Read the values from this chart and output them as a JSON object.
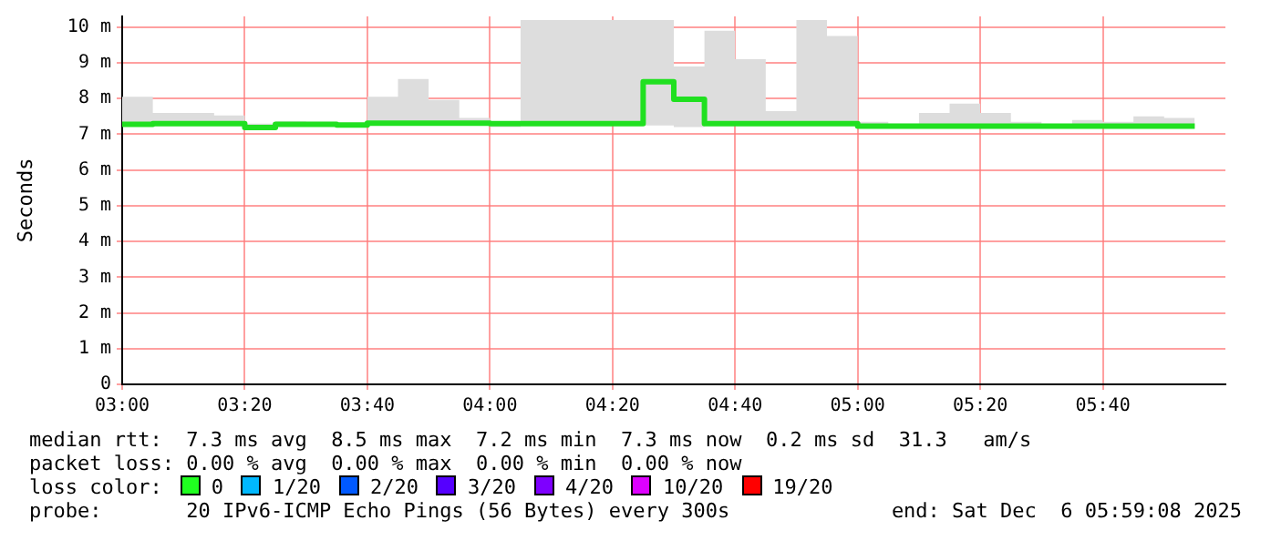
{
  "chart_data": {
    "type": "step",
    "ylabel": "Seconds",
    "x": [
      "2025-12-06T03:00",
      "2025-12-06T03:05",
      "2025-12-06T03:10",
      "2025-12-06T03:15",
      "2025-12-06T03:20",
      "2025-12-06T03:25",
      "2025-12-06T03:30",
      "2025-12-06T03:35",
      "2025-12-06T03:40",
      "2025-12-06T03:45",
      "2025-12-06T03:50",
      "2025-12-06T03:55",
      "2025-12-06T04:00",
      "2025-12-06T04:05",
      "2025-12-06T04:10",
      "2025-12-06T04:15",
      "2025-12-06T04:20",
      "2025-12-06T04:25",
      "2025-12-06T04:30",
      "2025-12-06T04:35",
      "2025-12-06T04:40",
      "2025-12-06T04:45",
      "2025-12-06T04:50",
      "2025-12-06T04:55",
      "2025-12-06T05:00",
      "2025-12-06T05:05",
      "2025-12-06T05:10",
      "2025-12-06T05:15",
      "2025-12-06T05:20",
      "2025-12-06T05:25",
      "2025-12-06T05:30",
      "2025-12-06T05:35",
      "2025-12-06T05:40",
      "2025-12-06T05:45",
      "2025-12-06T05:50",
      "2025-12-06T05:55"
    ],
    "series": [
      {
        "color": "#20e020",
        "values": [
          7.28,
          7.3,
          7.3,
          7.3,
          7.19,
          7.28,
          7.28,
          7.26,
          7.31,
          7.31,
          7.31,
          7.31,
          7.3,
          7.3,
          7.3,
          7.3,
          7.3,
          8.47,
          7.98,
          7.3,
          7.3,
          7.3,
          7.3,
          7.3,
          7.23,
          7.23,
          7.23,
          7.23,
          7.23,
          7.23,
          7.23,
          7.23,
          7.23,
          7.23,
          7.23,
          7.23
        ],
        "lower": [
          7.22,
          7.25,
          7.25,
          7.25,
          7.15,
          7.24,
          7.24,
          7.22,
          7.26,
          7.26,
          7.26,
          7.26,
          7.2,
          7.25,
          7.25,
          7.25,
          7.25,
          7.25,
          7.2,
          7.25,
          7.25,
          7.25,
          7.25,
          7.25,
          7.2,
          7.2,
          7.2,
          7.2,
          7.2,
          7.2,
          7.2,
          7.2,
          7.2,
          7.2,
          7.2,
          7.2
        ],
        "upper": [
          8.05,
          7.6,
          7.6,
          7.53,
          7.3,
          7.36,
          7.35,
          7.3,
          8.05,
          8.55,
          7.96,
          7.46,
          7.35,
          10.2,
          10.2,
          10.2,
          10.2,
          10.2,
          8.9,
          9.9,
          9.1,
          7.65,
          10.2,
          9.75,
          7.35,
          7.3,
          7.6,
          7.86,
          7.6,
          7.35,
          7.28,
          7.4,
          7.35,
          7.5,
          7.46,
          7.46
        ]
      }
    ],
    "xlim": [
      "2025-12-06T03:00",
      "2025-12-06T06:00"
    ],
    "xticks": [
      {
        "value": "2025-12-06T03:00",
        "label": "03:00"
      },
      {
        "value": "2025-12-06T03:20",
        "label": "03:20"
      },
      {
        "value": "2025-12-06T03:40",
        "label": "03:40"
      },
      {
        "value": "2025-12-06T04:00",
        "label": "04:00"
      },
      {
        "value": "2025-12-06T04:20",
        "label": "04:20"
      },
      {
        "value": "2025-12-06T04:40",
        "label": "04:40"
      },
      {
        "value": "2025-12-06T05:00",
        "label": "05:00"
      },
      {
        "value": "2025-12-06T05:20",
        "label": "05:20"
      },
      {
        "value": "2025-12-06T05:40",
        "label": "05:40"
      }
    ],
    "ylim": [
      0,
      10.3
    ],
    "yticks": [
      0,
      {
        "value": 1,
        "label": "1 m"
      },
      {
        "value": 2,
        "label": "2 m"
      },
      {
        "value": 3,
        "label": "3 m"
      },
      {
        "value": 4,
        "label": "4 m"
      },
      {
        "value": 5,
        "label": "5 m"
      },
      {
        "value": 6,
        "label": "6 m"
      },
      {
        "value": 7,
        "label": "7 m"
      },
      {
        "value": 8,
        "label": "8 m"
      },
      {
        "value": 9,
        "label": "9 m"
      },
      {
        "value": 10,
        "label": "10 m"
      }
    ],
    "grid": true,
    "legend": false,
    "annotations": [
      "median rtt:  7.3 ms avg  8.5 ms max  7.2 ms min  7.3 ms now  0.2 ms sd  31.3   am/s",
      "packet loss: 0.00 % avg  0.00 % max  0.00 % min  0.00 % now",
      "loss color:",
      "0",
      "1/20",
      "2/20",
      "3/20",
      "4/20",
      "10/20",
      "19/20",
      "probe:       20 IPv6-ICMP Echo Pings (56 Bytes) every 300s",
      "end: Sat Dec  6 05:59:08 2025"
    ]
  }
}
